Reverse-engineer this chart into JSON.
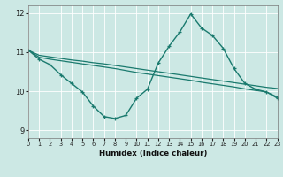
{
  "xlabel": "Humidex (Indice chaleur)",
  "background_color": "#cce8e4",
  "line_color": "#1a7a6e",
  "grid_color": "#ffffff",
  "x_ticks": [
    0,
    1,
    2,
    3,
    4,
    5,
    6,
    7,
    8,
    9,
    10,
    11,
    12,
    13,
    14,
    15,
    16,
    17,
    18,
    19,
    20,
    21,
    22,
    23
  ],
  "y_ticks": [
    9,
    10,
    11,
    12
  ],
  "xlim": [
    0,
    23
  ],
  "ylim": [
    8.8,
    12.2
  ],
  "series": [
    {
      "x": [
        0,
        1,
        2,
        3,
        4,
        5,
        6,
        7,
        8,
        9,
        10,
        11,
        12,
        13,
        14,
        15,
        16,
        17,
        18,
        19,
        20,
        21,
        22,
        23
      ],
      "y": [
        11.05,
        10.92,
        10.88,
        10.84,
        10.8,
        10.77,
        10.73,
        10.7,
        10.66,
        10.62,
        10.58,
        10.54,
        10.5,
        10.46,
        10.42,
        10.38,
        10.34,
        10.3,
        10.26,
        10.22,
        10.18,
        10.14,
        10.1,
        10.07
      ],
      "marker": false,
      "linewidth": 0.9
    },
    {
      "x": [
        0,
        1,
        2,
        3,
        4,
        5,
        6,
        7,
        8,
        9,
        10,
        11,
        12,
        13,
        14,
        15,
        16,
        17,
        18,
        19,
        20,
        21,
        22,
        23
      ],
      "y": [
        11.05,
        10.87,
        10.82,
        10.78,
        10.74,
        10.7,
        10.66,
        10.62,
        10.58,
        10.53,
        10.48,
        10.44,
        10.4,
        10.36,
        10.32,
        10.28,
        10.23,
        10.19,
        10.15,
        10.11,
        10.06,
        10.02,
        9.98,
        9.85
      ],
      "marker": false,
      "linewidth": 0.9
    },
    {
      "x": [
        0,
        1,
        2,
        3,
        4,
        5,
        6,
        7,
        8,
        9,
        10,
        11,
        12,
        13,
        14,
        15,
        16,
        17,
        18,
        19,
        20,
        21,
        22,
        23
      ],
      "y": [
        11.05,
        10.82,
        10.68,
        10.42,
        10.2,
        9.98,
        9.62,
        9.35,
        9.3,
        9.38,
        9.82,
        10.05,
        10.72,
        11.15,
        11.52,
        11.98,
        11.62,
        11.43,
        11.1,
        10.58,
        10.2,
        10.05,
        9.98,
        9.82
      ],
      "marker": true,
      "linewidth": 1.0
    }
  ]
}
